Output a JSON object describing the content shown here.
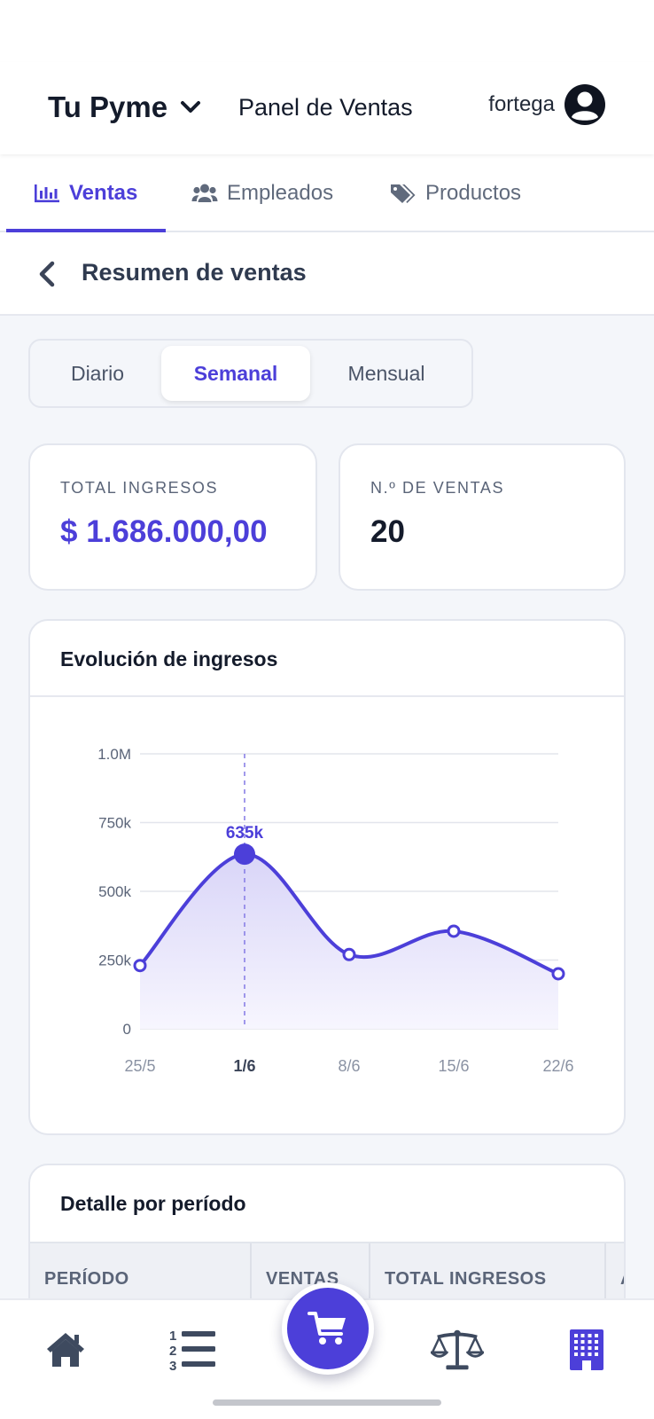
{
  "header": {
    "brand": "Tu Pyme",
    "panel_title": "Panel de Ventas",
    "username": "fortega"
  },
  "tabs": [
    {
      "label": "Ventas",
      "icon": "bar-chart-icon",
      "active": true
    },
    {
      "label": "Empleados",
      "icon": "users-icon",
      "active": false
    },
    {
      "label": "Productos",
      "icon": "tags-icon",
      "active": false
    }
  ],
  "subheader": {
    "title": "Resumen de ventas"
  },
  "periods": [
    {
      "label": "Diario",
      "active": false
    },
    {
      "label": "Semanal",
      "active": true
    },
    {
      "label": "Mensual",
      "active": false
    }
  ],
  "stats": {
    "total_label": "TOTAL INGRESOS",
    "total_value": "$ 1.686.000,00",
    "count_label": "N.º DE VENTAS",
    "count_value": "20"
  },
  "chart_card": {
    "title": "Evolución de ingresos"
  },
  "chart_data": {
    "type": "area",
    "title": "Evolución de ingresos",
    "categories": [
      "25/5",
      "1/6",
      "8/6",
      "15/6",
      "22/6"
    ],
    "series": [
      {
        "values": [
          230000,
          635000,
          270000,
          355000,
          200000
        ]
      }
    ],
    "ylim": [
      0,
      1000000
    ],
    "yticks": [
      "0",
      "250k",
      "500k",
      "750k",
      "1.0M"
    ],
    "ytick_values": [
      0,
      250000,
      500000,
      750000,
      1000000
    ],
    "highlight_index": 1,
    "highlight_label": "635k",
    "grid": true,
    "colors": {
      "line": "#4c3fd9",
      "fill_top": "#d9d5f8",
      "fill_bottom": "#f7f6fe"
    }
  },
  "detail": {
    "title": "Detalle por período",
    "columns": [
      "PERÍODO",
      "VENTAS",
      "TOTAL INGRESOS",
      "A"
    ]
  },
  "bottom_nav": [
    {
      "icon": "home-icon"
    },
    {
      "icon": "numbered-list-icon"
    },
    {
      "icon": "cart-icon"
    },
    {
      "icon": "balance-scale-icon"
    },
    {
      "icon": "building-icon"
    }
  ],
  "colors": {
    "accent": "#4c3fd9",
    "text": "#141b2b",
    "muted": "#5a6478",
    "background": "#f4f6fa"
  }
}
